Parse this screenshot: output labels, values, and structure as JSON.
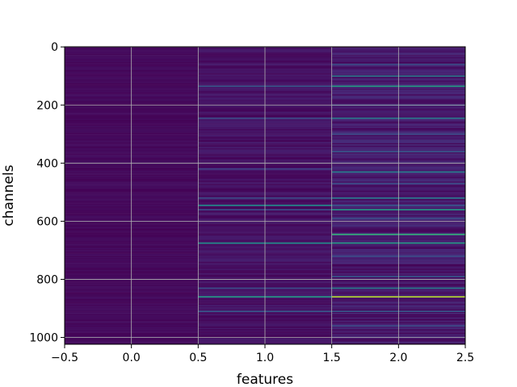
{
  "chart_data": {
    "type": "heatmap",
    "title": "",
    "xlabel": "features",
    "ylabel": "channels",
    "x_ticks": [
      -0.5,
      0.0,
      0.5,
      1.0,
      1.5,
      2.0,
      2.5
    ],
    "x_tick_labels": [
      "−0.5",
      "0.0",
      "0.5",
      "1.0",
      "1.5",
      "2.0",
      "2.5"
    ],
    "y_ticks": [
      0,
      200,
      400,
      600,
      800,
      1000
    ],
    "y_tick_labels": [
      "0",
      "200",
      "400",
      "600",
      "800",
      "1000"
    ],
    "xlim": [
      -0.5,
      2.5
    ],
    "ylim": [
      1023.5,
      -0.5
    ],
    "y_inverted": true,
    "grid": true,
    "colormap": "viridis",
    "n_rows": 1024,
    "columns": [
      0,
      1,
      2
    ],
    "base_level": [
      0.03,
      0.06,
      0.09
    ],
    "highlights": [
      {
        "col": 1,
        "row": 135,
        "value": 0.35
      },
      {
        "col": 1,
        "row": 245,
        "value": 0.3
      },
      {
        "col": 1,
        "row": 420,
        "value": 0.25
      },
      {
        "col": 1,
        "row": 520,
        "value": 0.3
      },
      {
        "col": 1,
        "row": 545,
        "value": 0.5
      },
      {
        "col": 1,
        "row": 560,
        "value": 0.3
      },
      {
        "col": 1,
        "row": 675,
        "value": 0.5
      },
      {
        "col": 1,
        "row": 830,
        "value": 0.3
      },
      {
        "col": 1,
        "row": 860,
        "value": 0.55
      },
      {
        "col": 1,
        "row": 910,
        "value": 0.35
      },
      {
        "col": 2,
        "row": 60,
        "value": 0.3
      },
      {
        "col": 2,
        "row": 100,
        "value": 0.45
      },
      {
        "col": 2,
        "row": 135,
        "value": 0.55
      },
      {
        "col": 2,
        "row": 200,
        "value": 0.3
      },
      {
        "col": 2,
        "row": 245,
        "value": 0.45
      },
      {
        "col": 2,
        "row": 300,
        "value": 0.3
      },
      {
        "col": 2,
        "row": 360,
        "value": 0.35
      },
      {
        "col": 2,
        "row": 430,
        "value": 0.45
      },
      {
        "col": 2,
        "row": 470,
        "value": 0.3
      },
      {
        "col": 2,
        "row": 520,
        "value": 0.45
      },
      {
        "col": 2,
        "row": 545,
        "value": 0.35
      },
      {
        "col": 2,
        "row": 560,
        "value": 0.55
      },
      {
        "col": 2,
        "row": 590,
        "value": 0.3
      },
      {
        "col": 2,
        "row": 645,
        "value": 0.65
      },
      {
        "col": 2,
        "row": 675,
        "value": 0.55
      },
      {
        "col": 2,
        "row": 720,
        "value": 0.3
      },
      {
        "col": 2,
        "row": 790,
        "value": 0.35
      },
      {
        "col": 2,
        "row": 830,
        "value": 0.45
      },
      {
        "col": 2,
        "row": 860,
        "value": 0.9
      },
      {
        "col": 2,
        "row": 910,
        "value": 0.35
      },
      {
        "col": 2,
        "row": 960,
        "value": 0.3
      }
    ]
  }
}
